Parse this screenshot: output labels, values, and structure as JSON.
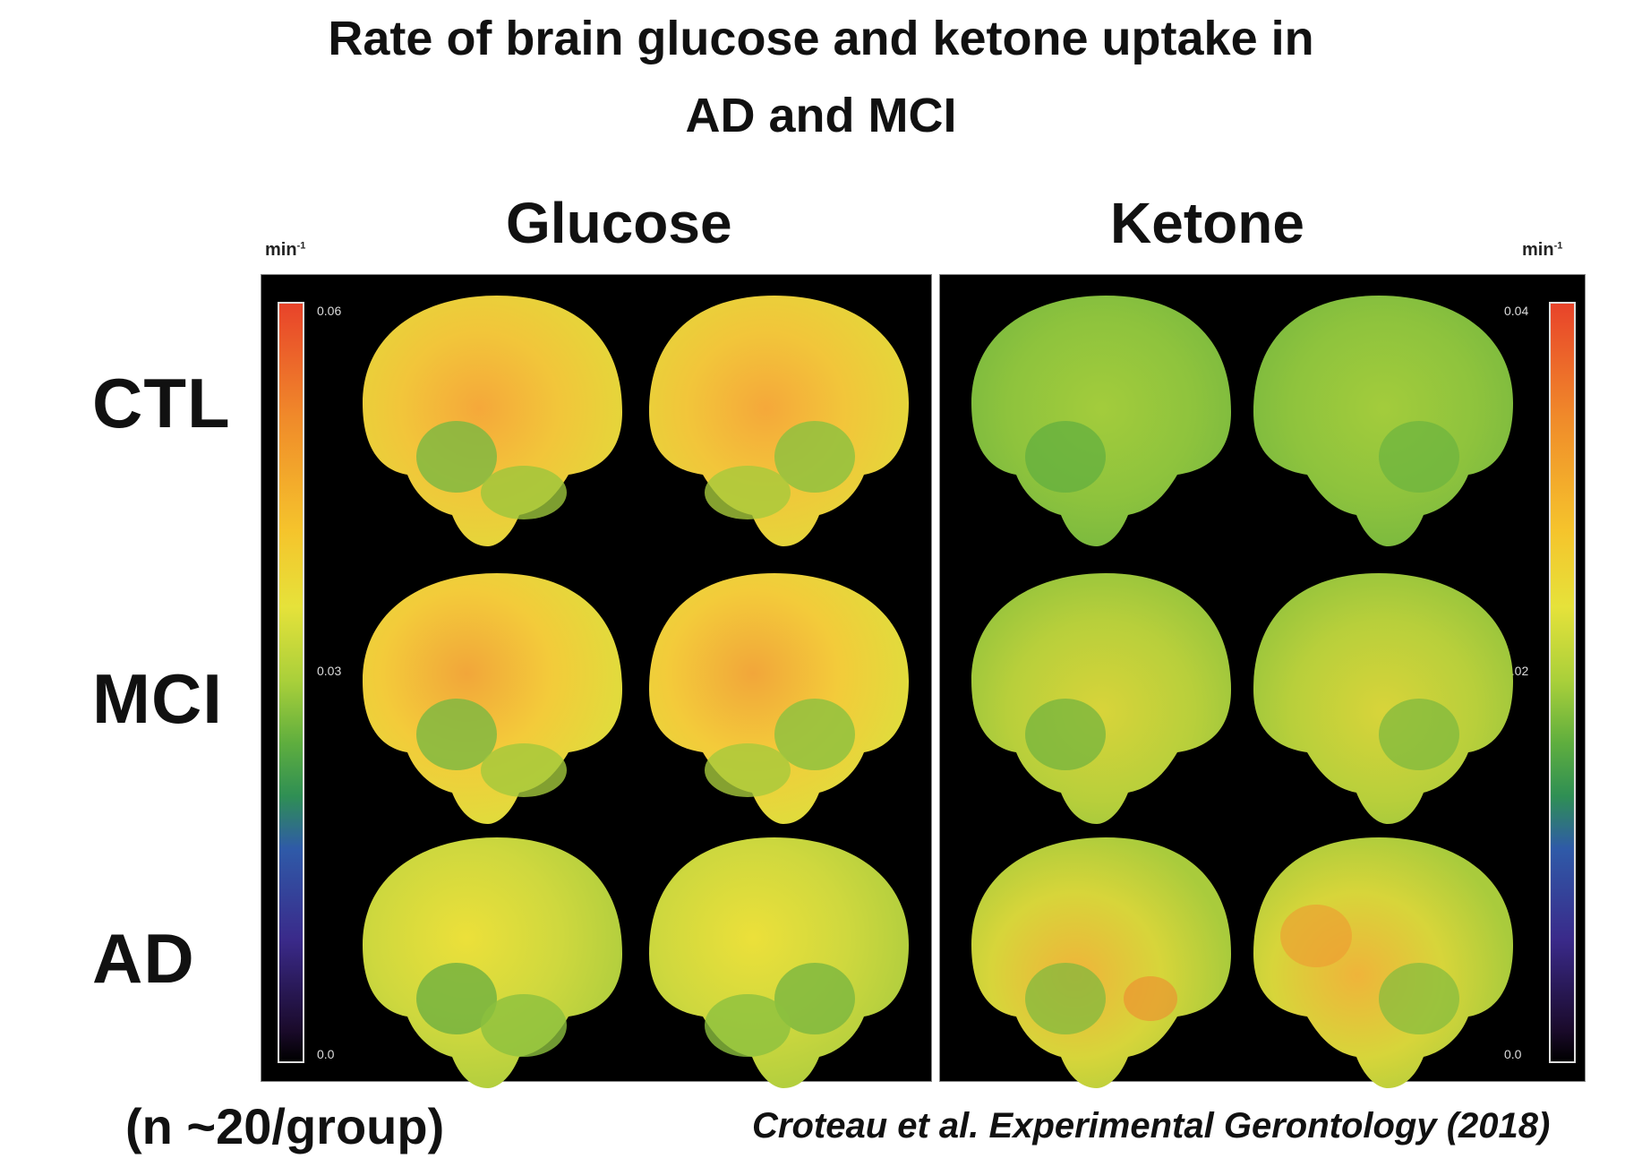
{
  "title_line1": "Rate of brain glucose and ketone uptake in",
  "title_line2": "AD and MCI",
  "columns": {
    "glucose": "Glucose",
    "ketone": "Ketone"
  },
  "rows": [
    "CTL",
    "MCI",
    "AD"
  ],
  "units": {
    "left": "min",
    "right": "min",
    "exponent": "-1"
  },
  "glucose_scale": {
    "max": "0.06",
    "mid": "0.03",
    "min": "0.0"
  },
  "ketone_scale": {
    "max": "0.04",
    "mid": "0.02",
    "min": "0.0"
  },
  "footer": {
    "sample": "(n ~20/group)",
    "citation": "Croteau et al. Experimental Gerontology (2018)"
  },
  "colors": {
    "panel_bg": "#000000",
    "colormap": [
      "#e8432a",
      "#f08a2a",
      "#f5c42c",
      "#e6e23a",
      "#a8cf3a",
      "#5fae3e",
      "#2f8f54",
      "#2f5aa8",
      "#3a2a8a",
      "#1a0a2a"
    ],
    "glucose_CTL": "#f0c23a",
    "glucose_MCI": "#f2c53a",
    "glucose_AD": "#d8dc3e",
    "ketone_CTL": "#8cc43c",
    "ketone_MCI": "#b5d03a",
    "ketone_AD": "#cfd43a"
  }
}
